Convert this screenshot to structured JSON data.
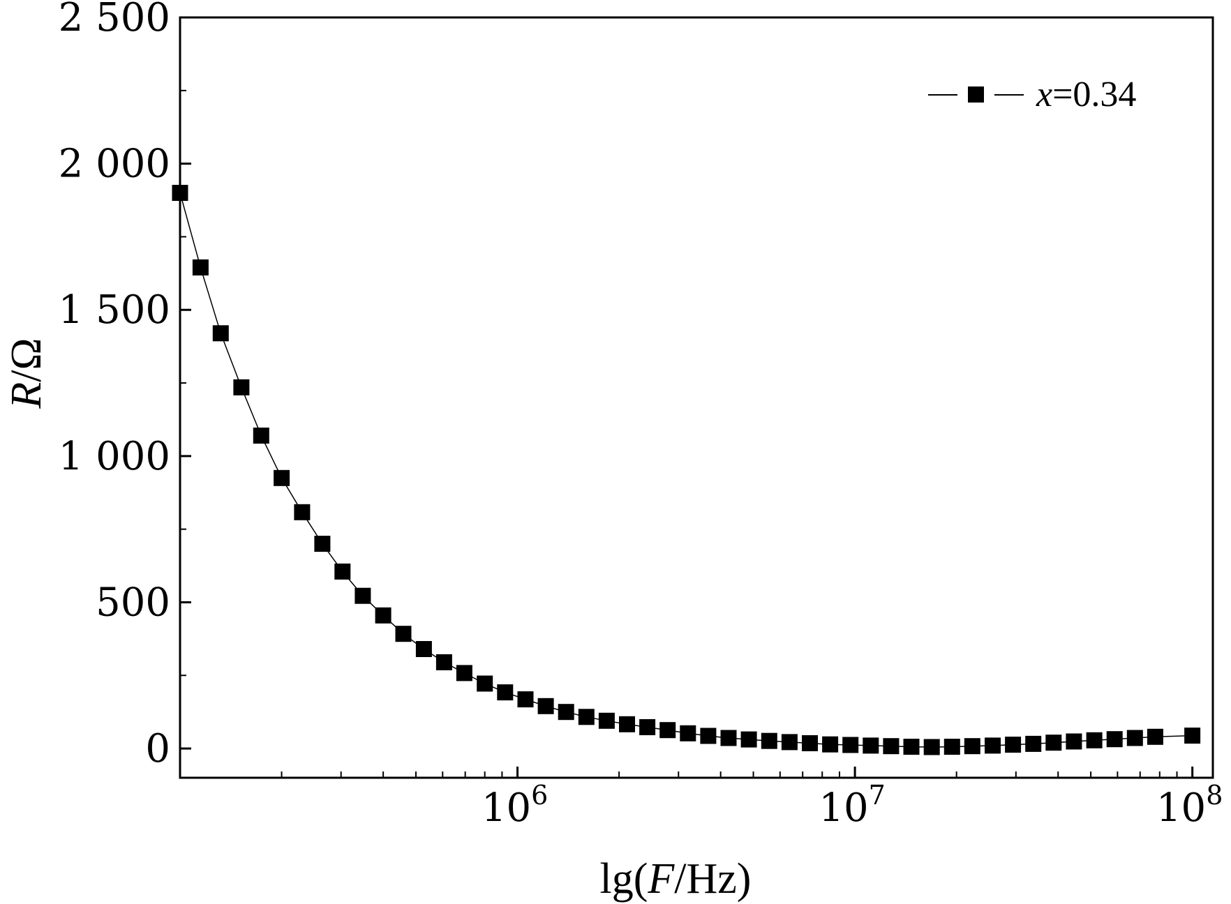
{
  "chart_data": {
    "type": "scatter",
    "title": "",
    "xlabel": {
      "prefix": "lg(",
      "var": "F",
      "suffix": "/Hz)"
    },
    "ylabel": {
      "var": "R",
      "suffix": "/Ω"
    },
    "x_scale": "log",
    "xlim": [
      100000,
      115000000
    ],
    "ylim": [
      -100,
      2500
    ],
    "y_ticks": [
      {
        "value": 0,
        "label": "0"
      },
      {
        "value": 500,
        "label": "500"
      },
      {
        "value": 1000,
        "label": "1 000"
      },
      {
        "value": 1500,
        "label": "1 500"
      },
      {
        "value": 2000,
        "label": "2 000"
      },
      {
        "value": 2500,
        "label": "2 500"
      }
    ],
    "y_minor_ticks": [
      250,
      750,
      1250,
      1750,
      2250
    ],
    "x_ticks": [
      {
        "value": 1000000,
        "base": "10",
        "exp": "6"
      },
      {
        "value": 10000000,
        "base": "10",
        "exp": "7"
      },
      {
        "value": 100000000,
        "base": "10",
        "exp": "8"
      }
    ],
    "grid": false,
    "legend": {
      "position": "top-right"
    },
    "series": [
      {
        "name_var": "x",
        "name_rest": "=0.34",
        "color": "#000000",
        "marker": "square",
        "line": "thin",
        "points": [
          [
            100000,
            1900
          ],
          [
            115000,
            1645
          ],
          [
            132000,
            1420
          ],
          [
            152000,
            1235
          ],
          [
            174000,
            1070
          ],
          [
            200000,
            925
          ],
          [
            230000,
            808
          ],
          [
            264000,
            700
          ],
          [
            303000,
            605
          ],
          [
            348000,
            522
          ],
          [
            400000,
            455
          ],
          [
            459000,
            392
          ],
          [
            528000,
            340
          ],
          [
            606000,
            295
          ],
          [
            696000,
            258
          ],
          [
            800000,
            222
          ],
          [
            919000,
            192
          ],
          [
            1056000,
            168
          ],
          [
            1213000,
            145
          ],
          [
            1393000,
            125
          ],
          [
            1600000,
            108
          ],
          [
            1838000,
            95
          ],
          [
            2111000,
            83
          ],
          [
            2425000,
            73
          ],
          [
            2786000,
            63
          ],
          [
            3200000,
            52
          ],
          [
            3676000,
            43
          ],
          [
            4222000,
            36
          ],
          [
            4850000,
            31
          ],
          [
            5572000,
            26
          ],
          [
            6400000,
            22
          ],
          [
            7352000,
            18
          ],
          [
            8445000,
            14
          ],
          [
            9701000,
            12
          ],
          [
            11140000,
            10
          ],
          [
            12800000,
            8
          ],
          [
            14700000,
            6
          ],
          [
            16890000,
            5
          ],
          [
            19400000,
            6
          ],
          [
            22280000,
            8
          ],
          [
            25600000,
            10
          ],
          [
            29400000,
            13
          ],
          [
            33780000,
            16
          ],
          [
            38800000,
            20
          ],
          [
            44570000,
            24
          ],
          [
            51200000,
            28
          ],
          [
            58810000,
            32
          ],
          [
            67550000,
            36
          ],
          [
            77600000,
            40
          ],
          [
            100000000,
            44
          ]
        ]
      }
    ]
  }
}
